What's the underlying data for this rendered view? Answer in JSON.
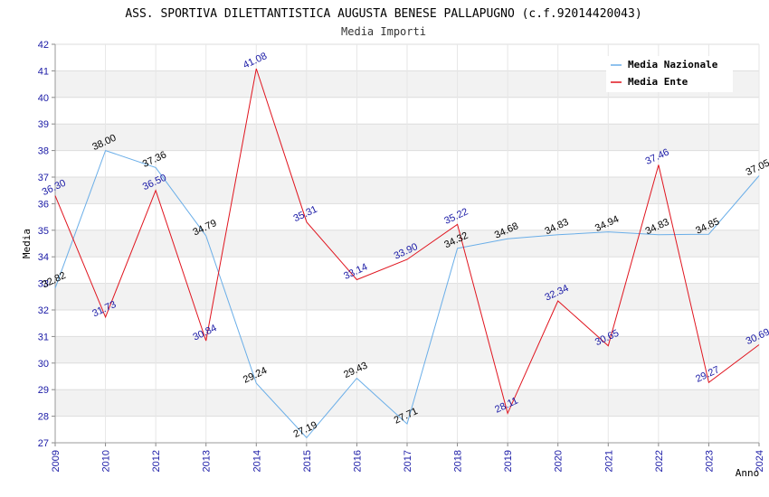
{
  "chart_data": {
    "type": "line",
    "title": "ASS. SPORTIVA DILETTANTISTICA AUGUSTA BENESE PALLAPUGNO (c.f.92014420043)",
    "subtitle": "Media Importi",
    "xlabel": "Anno",
    "ylabel": "Media",
    "ylim": [
      27,
      42
    ],
    "yticks": [
      "27",
      "28",
      "29",
      "30",
      "31",
      "32",
      "33",
      "34",
      "35",
      "36",
      "37",
      "38",
      "39",
      "40",
      "41",
      "42"
    ],
    "categories": [
      "2009",
      "2010",
      "2012",
      "2013",
      "2014",
      "2015",
      "2016",
      "2017",
      "2018",
      "2019",
      "2020",
      "2021",
      "2022",
      "2023",
      "2024"
    ],
    "legend_position": "top-right",
    "grid": true,
    "series": [
      {
        "name": "Media Nazionale",
        "color": "#6aaee8",
        "label_color": "#000000",
        "values": [
          32.82,
          38.0,
          37.36,
          34.79,
          29.24,
          27.19,
          29.43,
          27.71,
          34.32,
          34.68,
          34.83,
          34.94,
          34.83,
          34.85,
          37.05
        ],
        "labels": [
          "32.82",
          "38.00",
          "37.36",
          "34.79",
          "29.24",
          "27.19",
          "29.43",
          "27.71",
          "34.32",
          "34.68",
          "34.83",
          "34.94",
          "34.83",
          "34.85",
          "37.05"
        ]
      },
      {
        "name": "Media Ente",
        "color": "#e0141e",
        "label_color": "#1a1aa6",
        "values": [
          36.3,
          31.73,
          36.5,
          30.84,
          41.08,
          35.31,
          33.14,
          33.9,
          35.22,
          28.11,
          32.34,
          30.65,
          37.46,
          29.27,
          30.69
        ],
        "labels": [
          "36.30",
          "31.73",
          "36.50",
          "30.84",
          "41.08",
          "35.31",
          "33.14",
          "33.90",
          "35.22",
          "28.11",
          "32.34",
          "30.65",
          "37.46",
          "29.27",
          "30.69"
        ]
      }
    ]
  }
}
